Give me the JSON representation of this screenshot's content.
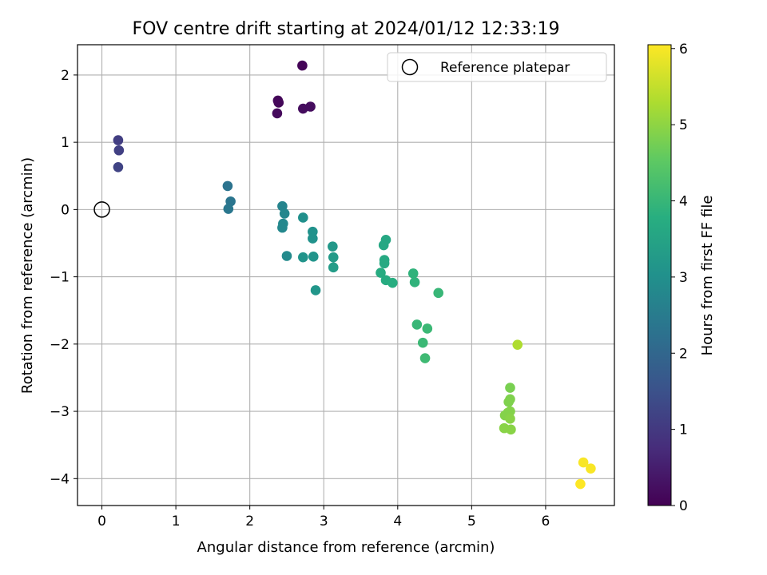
{
  "chart_data": {
    "type": "scatter",
    "title": "FOV centre drift starting at 2024/01/12 12:33:19",
    "xlabel": "Angular distance from reference (arcmin)",
    "ylabel": "Rotation from reference (arcmin)",
    "xlim": [
      -0.33,
      6.93
    ],
    "ylim": [
      -4.4,
      2.45
    ],
    "xticks": [
      0,
      1,
      2,
      3,
      4,
      5,
      6
    ],
    "yticks": [
      -4,
      -3,
      -2,
      -1,
      0,
      1,
      2
    ],
    "grid": true,
    "legend": {
      "placement": "top-right",
      "entries": [
        "Reference platepar"
      ]
    },
    "reference_point": {
      "x": 0,
      "y": 0
    },
    "colorbar": {
      "label": "Hours from first FF file",
      "range": [
        0,
        6.05
      ],
      "ticks": [
        0,
        1,
        2,
        3,
        4,
        5,
        6
      ],
      "colormap": "viridis"
    },
    "points": [
      {
        "x": 2.71,
        "y": 2.14,
        "h": 0.05
      },
      {
        "x": 2.38,
        "y": 1.62,
        "h": 0.1
      },
      {
        "x": 2.39,
        "y": 1.59,
        "h": 0.1
      },
      {
        "x": 2.37,
        "y": 1.43,
        "h": 0.15
      },
      {
        "x": 2.72,
        "y": 1.5,
        "h": 0.2
      },
      {
        "x": 2.82,
        "y": 1.53,
        "h": 0.2
      },
      {
        "x": 0.22,
        "y": 1.03,
        "h": 1.1
      },
      {
        "x": 0.23,
        "y": 0.88,
        "h": 1.15
      },
      {
        "x": 0.22,
        "y": 0.63,
        "h": 1.2
      },
      {
        "x": 1.7,
        "y": 0.35,
        "h": 2.3
      },
      {
        "x": 1.74,
        "y": 0.12,
        "h": 2.35
      },
      {
        "x": 1.71,
        "y": 0.01,
        "h": 2.4
      },
      {
        "x": 2.44,
        "y": 0.05,
        "h": 2.7
      },
      {
        "x": 2.47,
        "y": -0.06,
        "h": 2.75
      },
      {
        "x": 2.45,
        "y": -0.21,
        "h": 2.8
      },
      {
        "x": 2.44,
        "y": -0.27,
        "h": 2.8
      },
      {
        "x": 2.5,
        "y": -0.69,
        "h": 2.85
      },
      {
        "x": 2.72,
        "y": -0.12,
        "h": 3.0
      },
      {
        "x": 2.85,
        "y": -0.33,
        "h": 3.05
      },
      {
        "x": 2.85,
        "y": -0.43,
        "h": 3.05
      },
      {
        "x": 2.72,
        "y": -0.71,
        "h": 3.1
      },
      {
        "x": 2.86,
        "y": -0.7,
        "h": 3.1
      },
      {
        "x": 2.89,
        "y": -1.2,
        "h": 3.15
      },
      {
        "x": 3.12,
        "y": -0.55,
        "h": 3.2
      },
      {
        "x": 3.13,
        "y": -0.71,
        "h": 3.25
      },
      {
        "x": 3.13,
        "y": -0.86,
        "h": 3.3
      },
      {
        "x": 3.84,
        "y": -0.45,
        "h": 3.6
      },
      {
        "x": 3.81,
        "y": -0.53,
        "h": 3.6
      },
      {
        "x": 3.82,
        "y": -0.75,
        "h": 3.65
      },
      {
        "x": 3.82,
        "y": -0.8,
        "h": 3.65
      },
      {
        "x": 3.77,
        "y": -0.94,
        "h": 3.7
      },
      {
        "x": 3.84,
        "y": -1.05,
        "h": 3.7
      },
      {
        "x": 3.93,
        "y": -1.09,
        "h": 3.75
      },
      {
        "x": 4.21,
        "y": -0.95,
        "h": 3.9
      },
      {
        "x": 4.23,
        "y": -1.08,
        "h": 3.9
      },
      {
        "x": 4.55,
        "y": -1.24,
        "h": 4.0
      },
      {
        "x": 4.26,
        "y": -1.71,
        "h": 4.0
      },
      {
        "x": 4.4,
        "y": -1.77,
        "h": 4.05
      },
      {
        "x": 4.34,
        "y": -1.98,
        "h": 4.05
      },
      {
        "x": 4.37,
        "y": -2.21,
        "h": 4.1
      },
      {
        "x": 5.62,
        "y": -2.01,
        "h": 5.3
      },
      {
        "x": 5.52,
        "y": -2.65,
        "h": 4.8
      },
      {
        "x": 5.52,
        "y": -2.82,
        "h": 4.85
      },
      {
        "x": 5.5,
        "y": -2.86,
        "h": 4.85
      },
      {
        "x": 5.52,
        "y": -3.0,
        "h": 4.9
      },
      {
        "x": 5.49,
        "y": -3.02,
        "h": 4.9
      },
      {
        "x": 5.45,
        "y": -3.06,
        "h": 4.9
      },
      {
        "x": 5.52,
        "y": -3.11,
        "h": 4.95
      },
      {
        "x": 5.44,
        "y": -3.25,
        "h": 4.95
      },
      {
        "x": 5.53,
        "y": -3.27,
        "h": 4.95
      },
      {
        "x": 6.51,
        "y": -3.76,
        "h": 6.0
      },
      {
        "x": 6.61,
        "y": -3.85,
        "h": 6.0
      },
      {
        "x": 6.47,
        "y": -4.08,
        "h": 6.05
      }
    ]
  }
}
